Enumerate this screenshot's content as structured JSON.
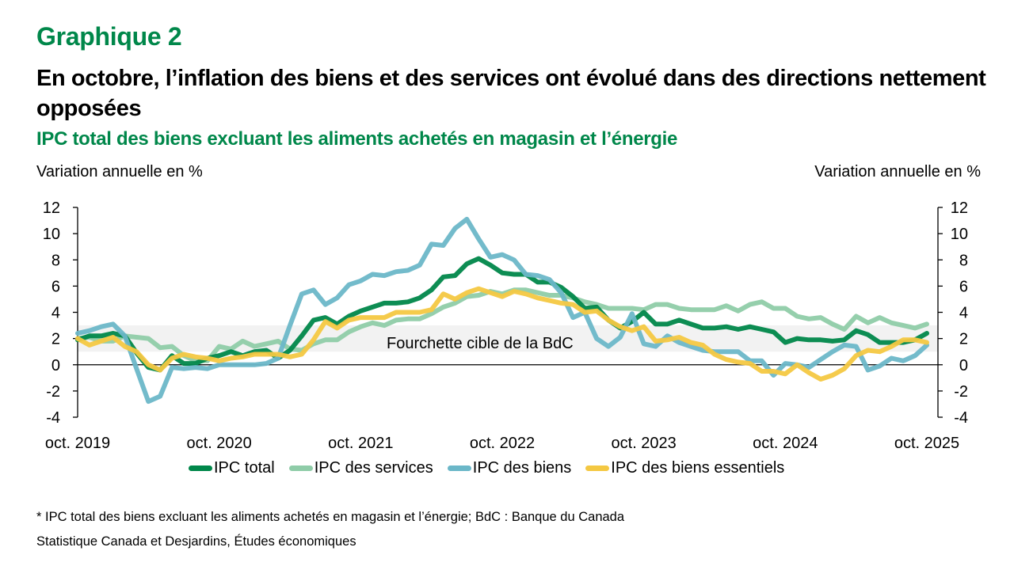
{
  "header": {
    "chart_number": "Graphique 2",
    "title": "En octobre, l’inflation des biens et des services ont évolué dans des directions nettement opposées",
    "subtitle": "IPC total des biens excluant les aliments achetés en magasin et l’énergie"
  },
  "footnote": "* IPC total des biens excluant les aliments achetés en magasin et l’énergie; BdC : Banque du Canada",
  "source": "Statistique Canada et Desjardins, Études économiques",
  "chart_data": {
    "type": "line",
    "title": "IPC total des biens excluant les aliments achetés en magasin et l’énergie",
    "ylabel_left": "Variation annuelle en %",
    "ylabel_right": "Variation annuelle en %",
    "xlabel": "",
    "ylim": [
      -4,
      12
    ],
    "yticks": [
      -4,
      -2,
      0,
      2,
      4,
      6,
      8,
      10,
      12
    ],
    "ytick_labels": [
      "-4",
      "-2",
      "0",
      "2",
      "4",
      "6",
      "8",
      "10",
      "12"
    ],
    "x_start": "2019-10",
    "x_end": "2025-10",
    "x_frequency": "monthly",
    "xtick_labels": [
      "oct. 2019",
      "oct. 2020",
      "oct. 2021",
      "oct. 2022",
      "oct. 2023",
      "oct. 2024",
      "oct. 2025"
    ],
    "xtick_months": [
      0,
      12,
      24,
      36,
      48,
      60,
      72
    ],
    "grid": false,
    "legend_position": "bottom",
    "target_band": {
      "label": "Fourchette cible de la BdC",
      "low": 1,
      "high": 3
    },
    "series": [
      {
        "name": "IPC total",
        "color": "#00874a",
        "values": [
          1.9,
          2.2,
          2.2,
          2.4,
          2.2,
          0.9,
          -0.2,
          -0.4,
          0.7,
          0.1,
          0.1,
          0.5,
          0.7,
          1.0,
          0.7,
          1.0,
          1.1,
          0.5,
          1.1,
          2.2,
          3.4,
          3.6,
          3.1,
          3.7,
          4.1,
          4.4,
          4.7,
          4.7,
          4.8,
          5.1,
          5.7,
          6.7,
          6.8,
          7.7,
          8.1,
          7.6,
          7.0,
          6.9,
          6.9,
          6.3,
          6.3,
          5.9,
          5.2,
          4.3,
          4.4,
          3.4,
          2.8,
          3.3,
          4.0,
          3.1,
          3.1,
          3.4,
          3.1,
          2.8,
          2.8,
          2.9,
          2.7,
          2.9,
          2.7,
          2.5,
          1.7,
          2.0,
          1.9,
          1.9,
          1.8,
          1.9,
          2.6,
          2.3,
          1.7,
          1.7,
          1.7,
          1.9,
          2.4
        ]
      },
      {
        "name": "IPC des services",
        "color": "#8fcca8",
        "values": [
          2.0,
          2.1,
          1.8,
          1.8,
          2.2,
          2.1,
          2.0,
          1.3,
          1.4,
          0.7,
          0.3,
          0.3,
          1.4,
          1.2,
          1.8,
          1.4,
          1.6,
          1.8,
          1.2,
          1.1,
          1.6,
          1.9,
          1.9,
          2.5,
          2.9,
          3.2,
          3.0,
          3.4,
          3.5,
          3.5,
          3.9,
          4.4,
          4.7,
          5.2,
          5.3,
          5.6,
          5.4,
          5.7,
          5.7,
          5.5,
          5.3,
          5.3,
          5.1,
          4.8,
          4.6,
          4.3,
          4.3,
          4.3,
          4.2,
          4.6,
          4.6,
          4.3,
          4.2,
          4.2,
          4.2,
          4.5,
          4.1,
          4.6,
          4.8,
          4.3,
          4.3,
          3.7,
          3.5,
          3.6,
          3.1,
          2.7,
          3.7,
          3.2,
          3.6,
          3.2,
          3.0,
          2.8,
          3.1
        ]
      },
      {
        "name": "IPC des biens",
        "color": "#6bb7c8",
        "values": [
          2.4,
          2.6,
          2.9,
          3.1,
          2.2,
          -0.3,
          -2.8,
          -2.4,
          -0.2,
          -0.3,
          -0.2,
          -0.3,
          0.0,
          0.0,
          0.0,
          0.0,
          0.1,
          0.5,
          3.0,
          5.4,
          5.7,
          4.6,
          5.1,
          6.1,
          6.4,
          6.9,
          6.8,
          7.1,
          7.2,
          7.6,
          9.2,
          9.1,
          10.4,
          11.1,
          9.6,
          8.2,
          8.4,
          8.0,
          6.9,
          6.8,
          6.5,
          5.5,
          3.6,
          4.0,
          2.0,
          1.4,
          2.1,
          3.9,
          1.6,
          1.4,
          2.2,
          1.7,
          1.4,
          1.1,
          1.0,
          1.0,
          1.0,
          0.3,
          0.3,
          -0.8,
          0.1,
          0.0,
          -0.2,
          0.4,
          1.0,
          1.5,
          1.4,
          -0.4,
          -0.1,
          0.5,
          0.3,
          0.7,
          1.5
        ]
      },
      {
        "name": "IPC des biens essentiels",
        "color": "#f4c842",
        "values": [
          2.0,
          1.5,
          1.8,
          2.1,
          1.4,
          1.0,
          0.0,
          -0.4,
          0.5,
          0.8,
          0.6,
          0.5,
          0.3,
          0.5,
          0.6,
          0.8,
          0.8,
          0.8,
          0.6,
          0.8,
          1.9,
          3.3,
          2.8,
          3.4,
          3.6,
          3.6,
          3.6,
          4.0,
          4.0,
          4.0,
          4.2,
          5.4,
          5.0,
          5.5,
          5.8,
          5.5,
          5.2,
          5.6,
          5.4,
          5.1,
          4.9,
          4.7,
          4.6,
          4.0,
          4.1,
          3.4,
          2.9,
          2.6,
          2.9,
          1.8,
          1.9,
          2.1,
          1.7,
          1.5,
          0.8,
          0.4,
          0.2,
          0.1,
          -0.5,
          -0.5,
          -0.7,
          0.0,
          -0.6,
          -1.1,
          -0.8,
          -0.3,
          0.7,
          1.1,
          1.0,
          1.4,
          1.9,
          1.9,
          1.7
        ]
      }
    ]
  }
}
